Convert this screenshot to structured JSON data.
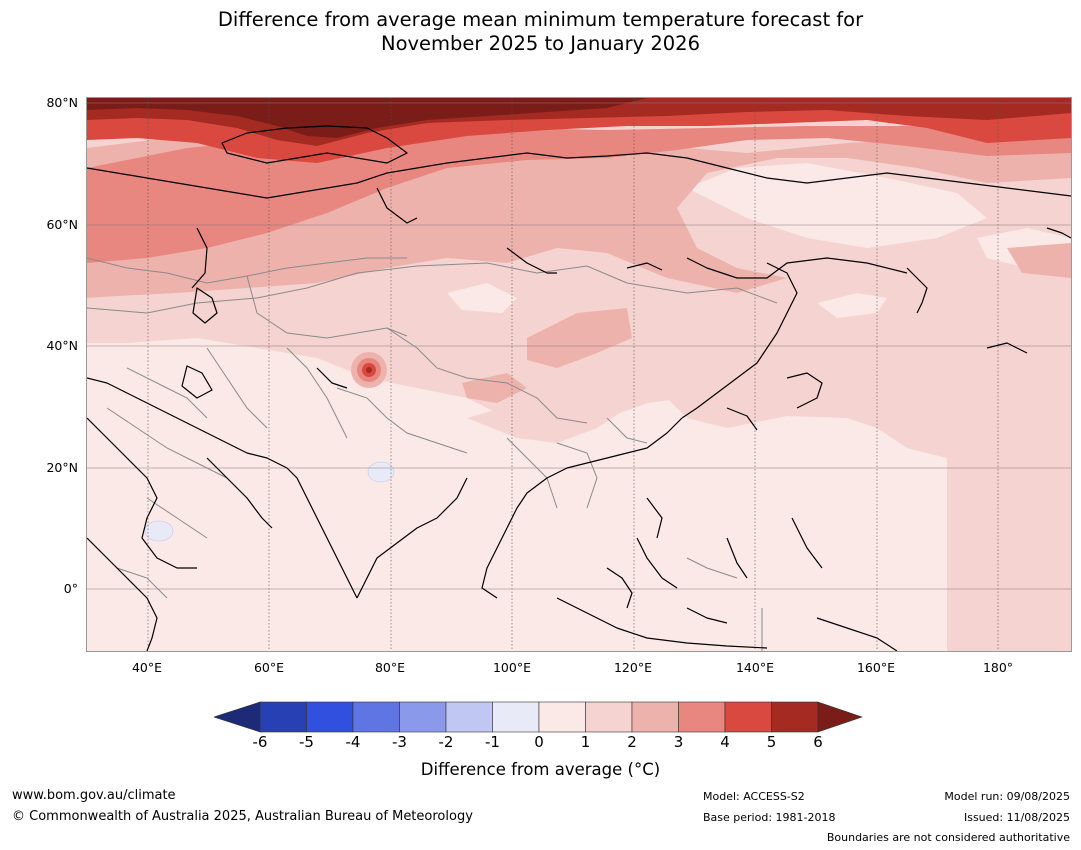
{
  "title_line1": "Difference from average mean minimum temperature forecast for",
  "title_line2": "November 2025 to January 2026",
  "map": {
    "lat_labels": [
      "80°N",
      "60°N",
      "40°N",
      "20°N",
      "0°"
    ],
    "lon_labels": [
      "40°E",
      "60°E",
      "80°E",
      "100°E",
      "120°E",
      "140°E",
      "160°E",
      "180°"
    ],
    "colors": {
      "land_base": "#fae9e7",
      "r1": "#f5d3d0",
      "r2": "#eeb2ad",
      "r3": "#e88680",
      "r4": "#d9493f",
      "r5": "#a52a22",
      "r6": "#7a1c17",
      "b1": "#e8eaf8",
      "coast": "#000000",
      "border": "#8a8a8a"
    }
  },
  "colorbar": {
    "ticks": [
      "-6",
      "-5",
      "-4",
      "-3",
      "-2",
      "-1",
      "0",
      "1",
      "2",
      "3",
      "4",
      "5",
      "6"
    ],
    "colors": [
      "#1d2a78",
      "#2740b3",
      "#3150e0",
      "#5f75e3",
      "#8a99ea",
      "#c0c7f2",
      "#e8eaf8",
      "#fbe9e7",
      "#f5d3d0",
      "#eeb2ad",
      "#e88680",
      "#d9493f",
      "#a52a22",
      "#7a1c17"
    ],
    "title": "Difference from average (°C)"
  },
  "footer": {
    "website": "www.bom.gov.au/climate",
    "copyright": "© Commonwealth of Australia 2025, Australian Bureau of Meteorology",
    "model": "Model: ACCESS-S2",
    "base_period": "Base period: 1981-2018",
    "model_run": "Model run: 09/08/2025",
    "issued": "Issued: 11/08/2025",
    "disclaimer": "Boundaries are not considered authoritative"
  }
}
